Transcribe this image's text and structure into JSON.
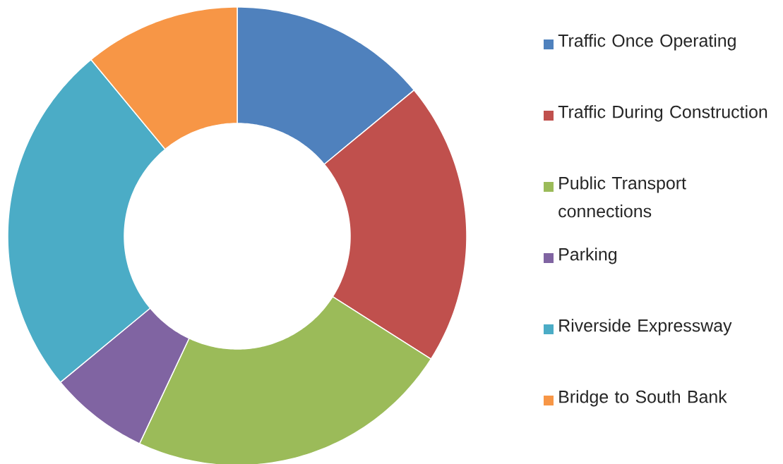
{
  "chart_data": {
    "type": "donut",
    "categories": [
      "Traffic Once Operating",
      "Traffic During Construction",
      "Public Transport connections",
      "Parking",
      "Riverside Expressway",
      "Bridge to South Bank"
    ],
    "values": [
      14,
      20,
      23,
      7,
      25,
      11
    ],
    "colors": [
      "#4f81bd",
      "#c0504d",
      "#9bbb59",
      "#8064a2",
      "#4bacc6",
      "#f79646"
    ],
    "legend": "right"
  }
}
